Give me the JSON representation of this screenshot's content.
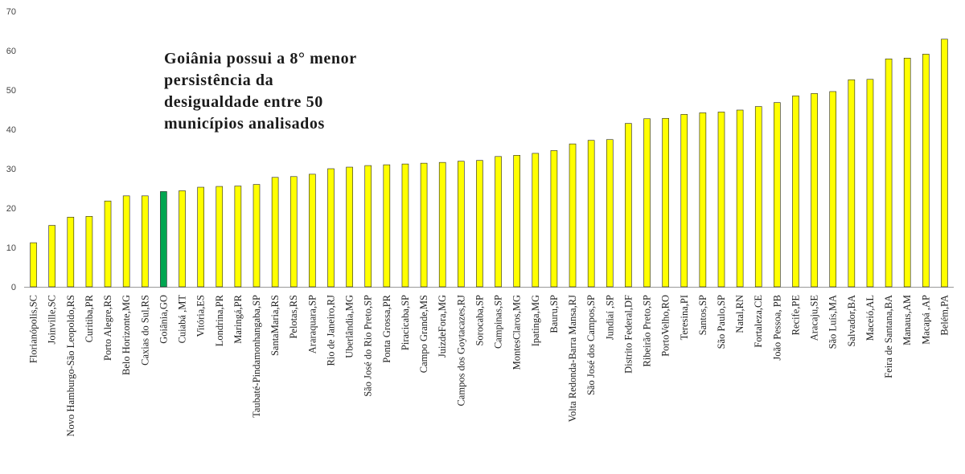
{
  "chart_data": {
    "type": "bar",
    "annotation": "Goiânia possui a 8° menor persistência da desigualdade entre 50 municípios analisados",
    "ylim": [
      0,
      70
    ],
    "yticks": [
      0,
      10,
      20,
      30,
      40,
      50,
      60,
      70
    ],
    "grid": false,
    "legend": "none",
    "colors": {
      "default": "#FFFF00",
      "highlight": "#00A651",
      "outline": "#222222"
    },
    "highlight_category": "Goiânia,GO",
    "categories": [
      "Florianópolis,SC",
      "Joinville,SC",
      "Novo Hamburgo-São Leopoldo,RS",
      "Curitiba,PR",
      "Porto Alegre,RS",
      "Belo Horizonte,MG",
      "Caxias do Sul,RS",
      "Goiânia,GO",
      "Cuiabá ,MT",
      "Vitória,ES",
      "Londrina,PR",
      "Maringá,PR",
      "Taubaté-Pindamonhangaba,SP",
      "SantaMaria,RS",
      "Pelotas,RS",
      "Araraquara,SP",
      "Rio de Janeiro,RJ",
      "Uberlândia,MG",
      "São José do Rio Preto,SP",
      "Ponta Grossa,PR",
      "Piracicaba,SP",
      "Campo Grande,MS",
      "JuizdeFora,MG",
      "Campos dos Goytacazes,RJ",
      "Sorocaba,SP",
      "Campinas,SP",
      "MontesClaros,MG",
      "Ipatinga,MG",
      "Bauru,SP",
      "Volta Redonda-Barra Mansa,RJ",
      "São José dos Campos,SP",
      "Jundiaí ,SP",
      "Distrito Federal,DF",
      "Ribeirão Preto,SP",
      "PortoVelho,RO",
      "Teresina,PI",
      "Santos,SP",
      "São Paulo,SP",
      "Natal,RN",
      "Fortaleza,CE",
      "João Pessoa, PB",
      "Recife,PE",
      "Aracaju,SE",
      "São Luís,MA",
      "Salvador,BA",
      "Maceió,AL",
      "Feira de Santana,BA",
      "Manaus,AM",
      "Macapá ,AP",
      "Belém,PA"
    ],
    "values": [
      11.2,
      15.6,
      17.7,
      17.9,
      21.8,
      23.1,
      23.1,
      24.2,
      24.4,
      25.3,
      25.5,
      25.6,
      26.0,
      27.8,
      28.0,
      28.6,
      30.0,
      30.4,
      30.8,
      31.0,
      31.2,
      31.4,
      31.6,
      31.9,
      32.1,
      33.1,
      33.4,
      33.9,
      34.6,
      36.3,
      37.2,
      37.4,
      41.5,
      42.7,
      42.8,
      43.8,
      44.2,
      44.4,
      44.9,
      45.8,
      46.8,
      48.5,
      49.1,
      49.6,
      52.6,
      52.7,
      57.9,
      58.1,
      59.1,
      62.9
    ]
  }
}
